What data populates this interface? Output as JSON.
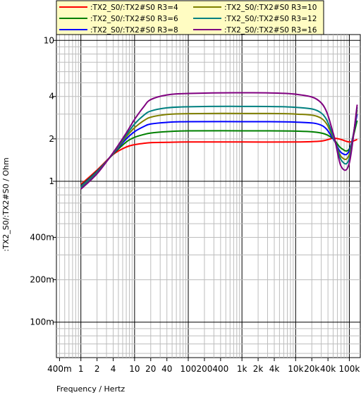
{
  "chart_data": {
    "type": "line",
    "xscale": "log",
    "yscale": "log",
    "xlabel": "Frequency / Hertz",
    "ylabel": ":TX2_S0/:TX2#S0 / Ohm",
    "xlim": [
      0.35,
      160000
    ],
    "ylim": [
      0.056,
      11
    ],
    "grid": true,
    "legend_position": "top",
    "x_ticks": [
      {
        "value": 0.4,
        "label": "400m"
      },
      {
        "value": 1,
        "label": "1"
      },
      {
        "value": 2,
        "label": "2"
      },
      {
        "value": 4,
        "label": "4"
      },
      {
        "value": 10,
        "label": "10"
      },
      {
        "value": 20,
        "label": "20"
      },
      {
        "value": 40,
        "label": "40"
      },
      {
        "value": 100,
        "label": "100"
      },
      {
        "value": 200,
        "label": "200"
      },
      {
        "value": 400,
        "label": "400"
      },
      {
        "value": 1000,
        "label": "1k"
      },
      {
        "value": 2000,
        "label": "2k"
      },
      {
        "value": 4000,
        "label": "4k"
      },
      {
        "value": 10000,
        "label": "10k"
      },
      {
        "value": 20000,
        "label": "20k"
      },
      {
        "value": 40000,
        "label": "40k"
      },
      {
        "value": 100000,
        "label": "100k"
      }
    ],
    "y_ticks": [
      {
        "value": 10,
        "label": "10"
      },
      {
        "value": 4,
        "label": "4"
      },
      {
        "value": 2,
        "label": "2"
      },
      {
        "value": 1,
        "label": "1"
      },
      {
        "value": 0.4,
        "label": "400m"
      },
      {
        "value": 0.2,
        "label": "200m"
      },
      {
        "value": 0.1,
        "label": "100m"
      }
    ],
    "series": [
      {
        "name": ":TX2_S0/:TX2#S0 R3=4",
        "color": "#ff0000",
        "x": [
          1,
          2,
          4,
          7,
          10,
          15,
          20,
          40,
          100,
          1000,
          10000,
          30000,
          50000,
          70000,
          100000,
          140000
        ],
        "y": [
          0.95,
          1.2,
          1.55,
          1.75,
          1.82,
          1.86,
          1.88,
          1.89,
          1.9,
          1.9,
          1.9,
          1.93,
          2.02,
          1.98,
          1.9,
          1.98
        ]
      },
      {
        "name": ":TX2_S0/:TX2#S0 R3=6",
        "color": "#008000",
        "x": [
          1,
          2,
          4,
          7,
          10,
          15,
          20,
          40,
          100,
          1000,
          10000,
          30000,
          50000,
          70000,
          100000,
          140000
        ],
        "y": [
          0.93,
          1.18,
          1.56,
          1.9,
          2.05,
          2.15,
          2.2,
          2.25,
          2.28,
          2.28,
          2.27,
          2.2,
          2.0,
          1.72,
          1.7,
          2.7
        ]
      },
      {
        "name": ":TX2_S0/:TX2#S0 R3=8",
        "color": "#0000ff",
        "x": [
          1,
          2,
          4,
          7,
          10,
          15,
          20,
          40,
          100,
          1000,
          10000,
          30000,
          50000,
          70000,
          100000,
          140000
        ],
        "y": [
          0.92,
          1.17,
          1.57,
          2.0,
          2.25,
          2.45,
          2.55,
          2.62,
          2.65,
          2.65,
          2.63,
          2.5,
          2.0,
          1.6,
          1.65,
          3.0
        ]
      },
      {
        "name": ":TX2_S0/:TX2#S0 R3=10",
        "color": "#808000",
        "x": [
          1,
          2,
          4,
          7,
          10,
          15,
          20,
          40,
          100,
          1000,
          10000,
          30000,
          50000,
          70000,
          100000,
          140000
        ],
        "y": [
          0.91,
          1.16,
          1.58,
          2.07,
          2.4,
          2.7,
          2.85,
          2.98,
          3.02,
          3.03,
          3.0,
          2.8,
          2.05,
          1.5,
          1.55,
          3.2
        ]
      },
      {
        "name": ":TX2_S0/:TX2#S0 R3=12",
        "color": "#008080",
        "x": [
          1,
          2,
          4,
          7,
          10,
          15,
          20,
          40,
          100,
          1000,
          10000,
          30000,
          50000,
          70000,
          100000,
          140000
        ],
        "y": [
          0.9,
          1.15,
          1.59,
          2.13,
          2.55,
          2.95,
          3.15,
          3.32,
          3.38,
          3.4,
          3.35,
          3.05,
          2.1,
          1.42,
          1.45,
          3.35
        ]
      },
      {
        "name": ":TX2_S0/:TX2#S0 R3=16",
        "color": "#800080",
        "x": [
          1,
          2,
          4,
          7,
          10,
          15,
          20,
          40,
          100,
          1000,
          10000,
          30000,
          50000,
          70000,
          100000,
          140000
        ],
        "y": [
          0.88,
          1.13,
          1.6,
          2.2,
          2.75,
          3.4,
          3.8,
          4.1,
          4.2,
          4.25,
          4.15,
          3.6,
          2.2,
          1.28,
          1.35,
          3.5
        ]
      }
    ]
  }
}
